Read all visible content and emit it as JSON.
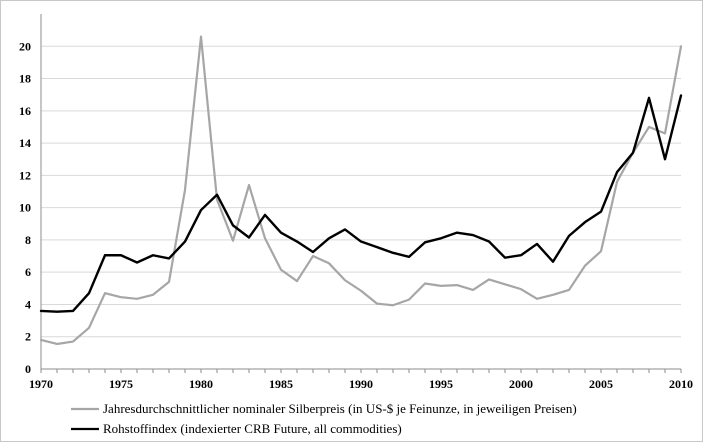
{
  "chart_data": {
    "type": "line",
    "title": "",
    "xlabel": "",
    "ylabel": "",
    "xlim": [
      1970,
      2010
    ],
    "ylim": [
      0,
      22
    ],
    "x_ticks": [
      1970,
      1975,
      1980,
      1985,
      1990,
      1995,
      2000,
      2005,
      2010
    ],
    "y_ticks": [
      0,
      2,
      4,
      6,
      8,
      10,
      12,
      14,
      16,
      18,
      20
    ],
    "grid": "horizontal",
    "legend_position": "bottom",
    "series": [
      {
        "name": "Jahresdurchschnittlicher nominaler Silberpreis (in US-$ je Feinunze, in jeweiligen Preisen)",
        "color": "#a6a6a6",
        "x": [
          1970,
          1971,
          1972,
          1973,
          1974,
          1975,
          1976,
          1977,
          1978,
          1979,
          1980,
          1981,
          1982,
          1983,
          1984,
          1985,
          1986,
          1987,
          1988,
          1989,
          1990,
          1991,
          1992,
          1993,
          1994,
          1995,
          1996,
          1997,
          1998,
          1999,
          2000,
          2001,
          2002,
          2003,
          2004,
          2005,
          2006,
          2007,
          2008,
          2009,
          2010
        ],
        "values": [
          1.8,
          1.55,
          1.7,
          2.55,
          4.7,
          4.45,
          4.35,
          4.6,
          5.4,
          11.1,
          20.6,
          10.5,
          7.95,
          11.4,
          8.1,
          6.15,
          5.45,
          7.0,
          6.55,
          5.5,
          4.85,
          4.05,
          3.95,
          4.3,
          5.3,
          5.15,
          5.2,
          4.9,
          5.55,
          5.25,
          4.95,
          4.35,
          4.6,
          4.9,
          6.4,
          7.3,
          11.6,
          13.4,
          15.0,
          14.6,
          20.0
        ]
      },
      {
        "name": "Rohstoffindex (indexierter CRB Future, all commodities)",
        "color": "#000000",
        "x": [
          1970,
          1971,
          1972,
          1973,
          1974,
          1975,
          1976,
          1977,
          1978,
          1979,
          1980,
          1981,
          1982,
          1983,
          1984,
          1985,
          1986,
          1987,
          1988,
          1989,
          1990,
          1991,
          1992,
          1993,
          1994,
          1995,
          1996,
          1997,
          1998,
          1999,
          2000,
          2001,
          2002,
          2003,
          2004,
          2005,
          2006,
          2007,
          2008,
          2009,
          2010
        ],
        "values": [
          3.6,
          3.55,
          3.6,
          4.7,
          7.05,
          7.05,
          6.6,
          7.05,
          6.85,
          7.9,
          9.85,
          10.8,
          8.9,
          8.15,
          9.55,
          8.45,
          7.9,
          7.25,
          8.1,
          8.65,
          7.9,
          7.55,
          7.2,
          6.95,
          7.85,
          8.1,
          8.45,
          8.3,
          7.9,
          6.9,
          7.05,
          7.75,
          6.65,
          8.25,
          9.1,
          9.75,
          12.2,
          13.4,
          16.8,
          13.0,
          16.95
        ]
      }
    ]
  }
}
